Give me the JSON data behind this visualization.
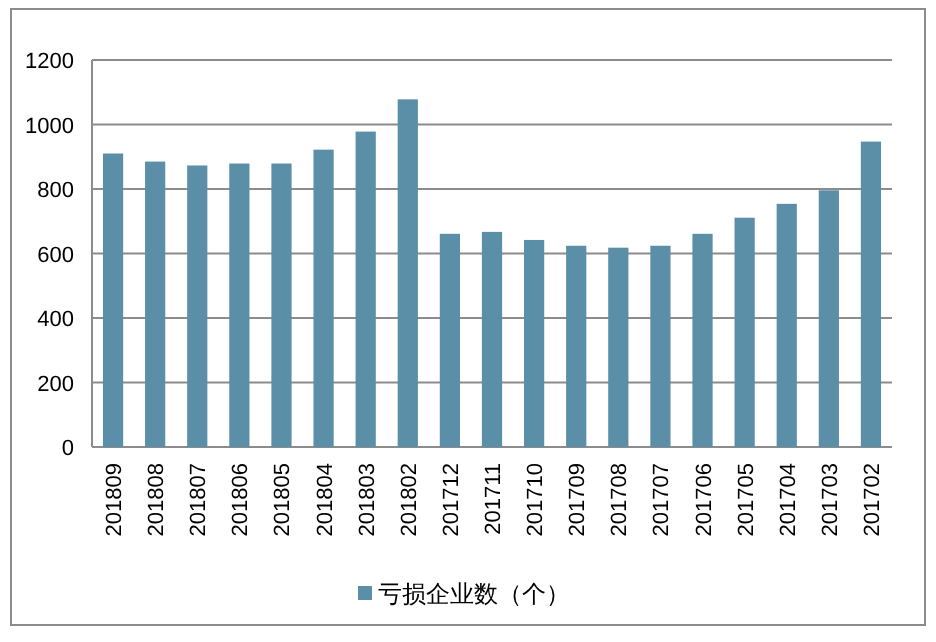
{
  "chart_data": {
    "type": "bar",
    "categories": [
      "201809",
      "201808",
      "201807",
      "201806",
      "201805",
      "201804",
      "201803",
      "201802",
      "201712",
      "201711",
      "201710",
      "201709",
      "201708",
      "201707",
      "201706",
      "201705",
      "201704",
      "201703",
      "201702"
    ],
    "series": [
      {
        "name": "亏损企业数（个）",
        "color": "#5b8fa8",
        "values": [
          910,
          885,
          873,
          879,
          879,
          922,
          978,
          1078,
          661,
          667,
          642,
          624,
          618,
          624,
          661,
          711,
          754,
          796,
          947
        ]
      }
    ],
    "ylim": [
      0,
      1200
    ],
    "yticks": [
      0,
      200,
      400,
      600,
      800,
      1000,
      1200
    ],
    "grid": "y",
    "legend": "bottom"
  }
}
